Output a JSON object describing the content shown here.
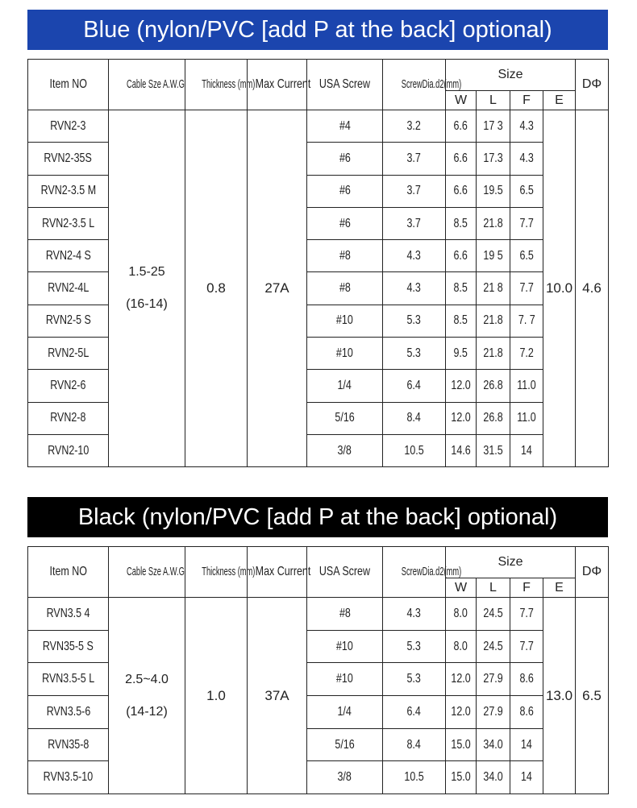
{
  "colors": {
    "blue_banner": "#1b45ae",
    "black_banner": "#000000"
  },
  "headers": {
    "item_no": "Item NO",
    "cable_size": "Cable Sze A.W.G",
    "thickness": "Thickness (mm)",
    "max_current": "Max Current",
    "usa_screw": "USA Screw",
    "screw_dia": "ScrewDia.d2(mm)",
    "size": "Size",
    "w": "W",
    "l": "L",
    "f": "F",
    "e": "E",
    "d_phi": "DΦ"
  },
  "tables": [
    {
      "title": "Blue (nylon/PVC [add P at the back] optional)",
      "cable_size": "1.5-25",
      "awg": "(16-14)",
      "thickness": "0.8",
      "max_current": "27A",
      "e": "10.0",
      "d_phi": "4.6",
      "rows": [
        {
          "item": "RVN2-3",
          "screw": "#4",
          "dia": "3.2",
          "w": "6.6",
          "l": "17 3",
          "f": "4.3"
        },
        {
          "item": "RVN2-35S",
          "screw": "#6",
          "dia": "3.7",
          "w": "6.6",
          "l": "17.3",
          "f": "4.3"
        },
        {
          "item": "RVN2-3.5 M",
          "screw": "#6",
          "dia": "3.7",
          "w": "6.6",
          "l": "19.5",
          "f": "6.5"
        },
        {
          "item": "RVN2-3.5 L",
          "screw": "#6",
          "dia": "3.7",
          "w": "8.5",
          "l": "21.8",
          "f": "7.7"
        },
        {
          "item": "RVN2-4 S",
          "screw": "#8",
          "dia": "4.3",
          "w": "6.6",
          "l": "19 5",
          "f": "6.5"
        },
        {
          "item": "RVN2-4L",
          "screw": "#8",
          "dia": "4.3",
          "w": "8.5",
          "l": "21 8",
          "f": "7.7"
        },
        {
          "item": "RVN2-5 S",
          "screw": "#10",
          "dia": "5.3",
          "w": "8.5",
          "l": "21.8",
          "f": "7. 7"
        },
        {
          "item": "RVN2-5L",
          "screw": "#10",
          "dia": "5.3",
          "w": "9.5",
          "l": "21.8",
          "f": "7.2"
        },
        {
          "item": "RVN2-6",
          "screw": "1/4",
          "dia": "6.4",
          "w": "12.0",
          "l": "26.8",
          "f": "11.0"
        },
        {
          "item": "RVN2-8",
          "screw": "5/16",
          "dia": "8.4",
          "w": "12.0",
          "l": "26.8",
          "f": "11.0"
        },
        {
          "item": "RVN2-10",
          "screw": "3/8",
          "dia": "10.5",
          "w": "14.6",
          "l": "31.5",
          "f": "14"
        }
      ]
    },
    {
      "title": "Black (nylon/PVC [add P at the back] optional)",
      "cable_size": "2.5~4.0",
      "awg": "(14-12)",
      "thickness": "1.0",
      "max_current": "37A",
      "e": "13.0",
      "d_phi": "6.5",
      "rows": [
        {
          "item": "RVN3.5 4",
          "screw": "#8",
          "dia": "4.3",
          "w": "8.0",
          "l": "24.5",
          "f": "7.7"
        },
        {
          "item": "RVN35-5 S",
          "screw": "#10",
          "dia": "5.3",
          "w": "8.0",
          "l": "24.5",
          "f": "7.7"
        },
        {
          "item": "RVN3.5-5 L",
          "screw": "#10",
          "dia": "5.3",
          "w": "12.0",
          "l": "27.9",
          "f": "8.6"
        },
        {
          "item": "RVN3.5-6",
          "screw": "1/4",
          "dia": "6.4",
          "w": "12.0",
          "l": "27.9",
          "f": "8.6"
        },
        {
          "item": "RVN35-8",
          "screw": "5/16",
          "dia": "8.4",
          "w": "15.0",
          "l": "34.0",
          "f": "14"
        },
        {
          "item": "RVN3.5-10",
          "screw": "3/8",
          "dia": "10.5",
          "w": "15.0",
          "l": "34.0",
          "f": "14"
        }
      ]
    }
  ]
}
